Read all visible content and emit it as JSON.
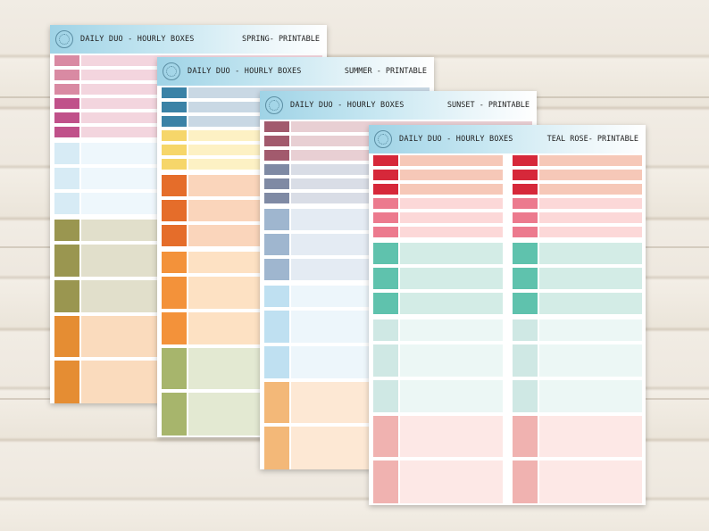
{
  "sheets": [
    {
      "id": "spring",
      "brand": "Daily Duo - Hourly Boxes",
      "edition": "Spring- Printable",
      "tab_colors": {
        "small_a": "#d98aa3",
        "small_b": "#c0518a",
        "light_blue": "#d7ebf5",
        "olive": "#9a9650",
        "orange": "#e58d33"
      },
      "fill_colors": {
        "pink": "#f3d5de",
        "light_blue": "#eef7fc",
        "olive": "#e1dfcb",
        "orange": "#fadbbd"
      }
    },
    {
      "id": "summer",
      "brand": "Daily Duo - Hourly Boxes",
      "edition": "Summer - Printable",
      "tab_colors": {
        "blue": "#3a82a6",
        "yellow": "#f6d66a",
        "orange_dark": "#e56d2a",
        "orange": "#f3923a",
        "green": "#a7b56c"
      },
      "fill_colors": {
        "blue": "#c9d8e4",
        "yellow": "#fdf1c4",
        "orange": "#fad5bb",
        "orange_light": "#fde1c3",
        "green": "#e3e9d2"
      }
    },
    {
      "id": "sunset",
      "brand": "Daily Duo - Hourly Boxes",
      "edition": "Sunset - Printable",
      "tab_colors": {
        "mauve": "#a25a6d",
        "slate": "#7f8aa4",
        "steel": "#9fb6cf",
        "sky": "#bfe0f1",
        "peach": "#f3b878"
      },
      "fill_colors": {
        "mauve": "#e8cfd3",
        "slate": "#d9dde6",
        "steel": "#e4ebf3",
        "sky": "#edf6fb",
        "peach": "#fde8d4"
      }
    },
    {
      "id": "teal-rose",
      "brand": "Daily Duo - Hourly Boxes",
      "edition": "Teal Rose- Printable",
      "tab_colors": {
        "red": "#d6283a",
        "pink": "#ec7a8e",
        "teal": "#5fc2ad",
        "mint": "#cfe8e4",
        "rose": "#f0b2b0"
      },
      "fill_colors": {
        "red": "#f6c8b8",
        "pink": "#fcd8d8",
        "teal": "#d3ece6",
        "mint": "#ecf7f5",
        "rose": "#fde8e6"
      }
    }
  ]
}
